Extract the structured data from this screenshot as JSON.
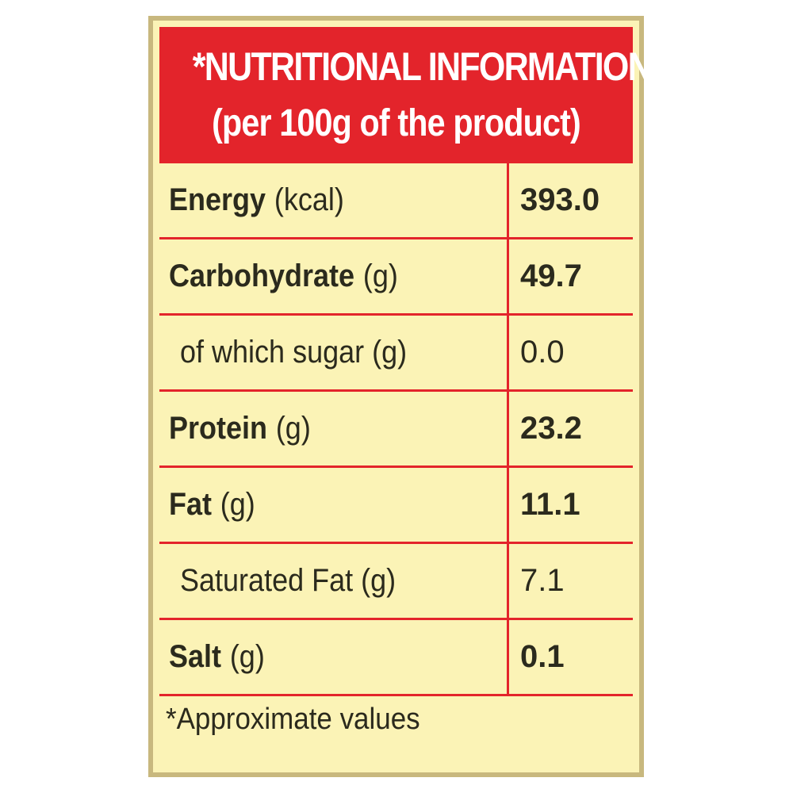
{
  "header": {
    "title": "*NUTRITIONAL INFORMATION",
    "subtitle": "(per 100g of the product)"
  },
  "rows": [
    {
      "name": "Energy",
      "unit": "(kcal)",
      "value": "393.0"
    },
    {
      "name": "Carbohydrate",
      "unit": "(g)",
      "value": "49.7"
    },
    {
      "name": "of which sugar (g)",
      "unit": "",
      "value": "0.0"
    },
    {
      "name": "Protein",
      "unit": "(g)",
      "value": "23.2"
    },
    {
      "name": "Fat",
      "unit": "(g)",
      "value": "11.1"
    },
    {
      "name": "Saturated Fat (g)",
      "unit": "",
      "value": "7.1"
    },
    {
      "name": "Salt",
      "unit": "(g)",
      "value": "0.1"
    }
  ],
  "footnote": "*Approximate values",
  "colors": {
    "header_red": "#e3242b",
    "background_cream": "#fbf3b6",
    "frame_tan": "#c8b87e"
  }
}
